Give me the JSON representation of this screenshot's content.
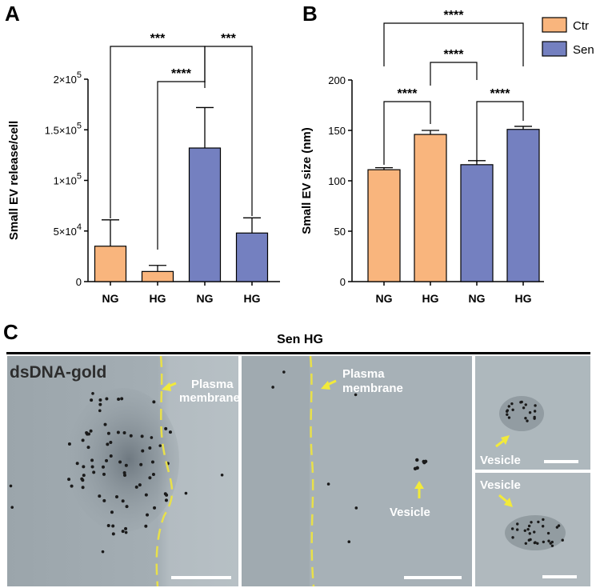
{
  "panels": {
    "a": "A",
    "b": "B",
    "c": "C"
  },
  "chart_data": [
    {
      "type": "bar",
      "panel": "A",
      "categories": [
        "NG",
        "HG",
        "NG",
        "HG"
      ],
      "values": [
        35000,
        10000,
        132000,
        48000
      ],
      "errors": [
        26000,
        6000,
        40000,
        15000
      ],
      "groups": [
        "Ctr",
        "Ctr",
        "Sen",
        "Sen"
      ],
      "ylabel": "Small EV release/cell",
      "ylim": [
        0,
        200000
      ],
      "ytick_mantissa": [
        "0",
        "5×10",
        "1×10",
        "1.5×10",
        "2×10"
      ],
      "ytick_exponent": [
        "",
        "4",
        "5",
        "5",
        "5"
      ],
      "ytick_values": [
        0,
        50000,
        100000,
        150000,
        200000
      ],
      "significance": [
        {
          "from": 2,
          "to": 1,
          "label": "****"
        },
        {
          "from": 0,
          "to": 2,
          "label": "***"
        },
        {
          "from": 2,
          "to": 3,
          "label": "***"
        }
      ]
    },
    {
      "type": "bar",
      "panel": "B",
      "categories": [
        "NG",
        "HG",
        "NG",
        "HG"
      ],
      "values": [
        111,
        146,
        116,
        151
      ],
      "errors": [
        2,
        4,
        4,
        3
      ],
      "groups": [
        "Ctr",
        "Ctr",
        "Sen",
        "Sen"
      ],
      "ylabel": "Small EV size (nm)",
      "ylim": [
        0,
        200
      ],
      "ytick_values": [
        0,
        50,
        100,
        150,
        200
      ],
      "significance": [
        {
          "from": 0,
          "to": 1,
          "label": "****"
        },
        {
          "from": 2,
          "to": 3,
          "label": "****"
        },
        {
          "from": 1,
          "to": 2,
          "label": "****"
        },
        {
          "from": 0,
          "to": 3,
          "label": "****"
        }
      ]
    }
  ],
  "legend": [
    {
      "name": "Ctr",
      "color": "#f9b57d"
    },
    {
      "name": "Sen",
      "color": "#7480c0"
    }
  ],
  "micrograph": {
    "title": "Sen HG",
    "stain_label": "dsDNA-gold",
    "plasma_membrane": "Plasma\nmembrane",
    "vesicle": "Vesicle"
  },
  "colors": {
    "ctr": "#f9b57d",
    "sen": "#7480c0",
    "arrow": "#f2ea3a",
    "membrane": "#e8e04a"
  }
}
